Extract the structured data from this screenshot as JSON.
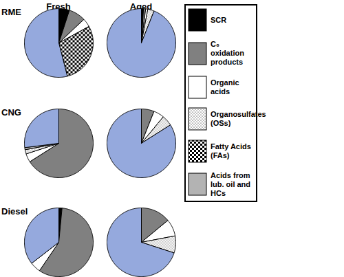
{
  "chart_data": {
    "type": "pie",
    "columns": [
      "Fresh",
      "Aged"
    ],
    "rows": [
      "RME",
      "CNG",
      "Diesel"
    ],
    "series": [
      {
        "name": "SCR",
        "color": "#000000"
      },
      {
        "name": "C₆ oxidation products",
        "color": "#808080"
      },
      {
        "name": "Organic acids",
        "color": "#ffffff"
      },
      {
        "name": "Organosulfates (OSs)",
        "color": "#ffffff",
        "marker": "dotted"
      },
      {
        "name": "Fatty Acids (FAs)",
        "color": "#ffffff",
        "marker": "checkered"
      },
      {
        "name": "Acids from lub. oil and HCs",
        "color": "#b3b3b3"
      },
      {
        "name": null,
        "color": "#95a9dd"
      }
    ],
    "pies": [
      {
        "row": "RME",
        "column": "Fresh",
        "values": [
          5,
          8,
          4,
          0,
          29,
          0,
          54
        ]
      },
      {
        "row": "RME",
        "column": "Aged",
        "values": [
          1,
          1,
          1,
          3,
          0,
          0,
          94
        ]
      },
      {
        "row": "CNG",
        "column": "Fresh",
        "values": [
          0,
          66,
          4,
          2,
          0,
          1,
          27
        ]
      },
      {
        "row": "CNG",
        "column": "Aged",
        "values": [
          0,
          6,
          5,
          5,
          0,
          0,
          84
        ]
      },
      {
        "row": "Diesel",
        "column": "Fresh",
        "values": [
          1.5,
          58,
          5,
          0,
          0,
          0,
          35.5
        ]
      },
      {
        "row": "Diesel",
        "column": "Aged",
        "values": [
          0,
          14,
          8,
          8,
          0,
          0,
          70
        ]
      }
    ],
    "legend": "right"
  }
}
